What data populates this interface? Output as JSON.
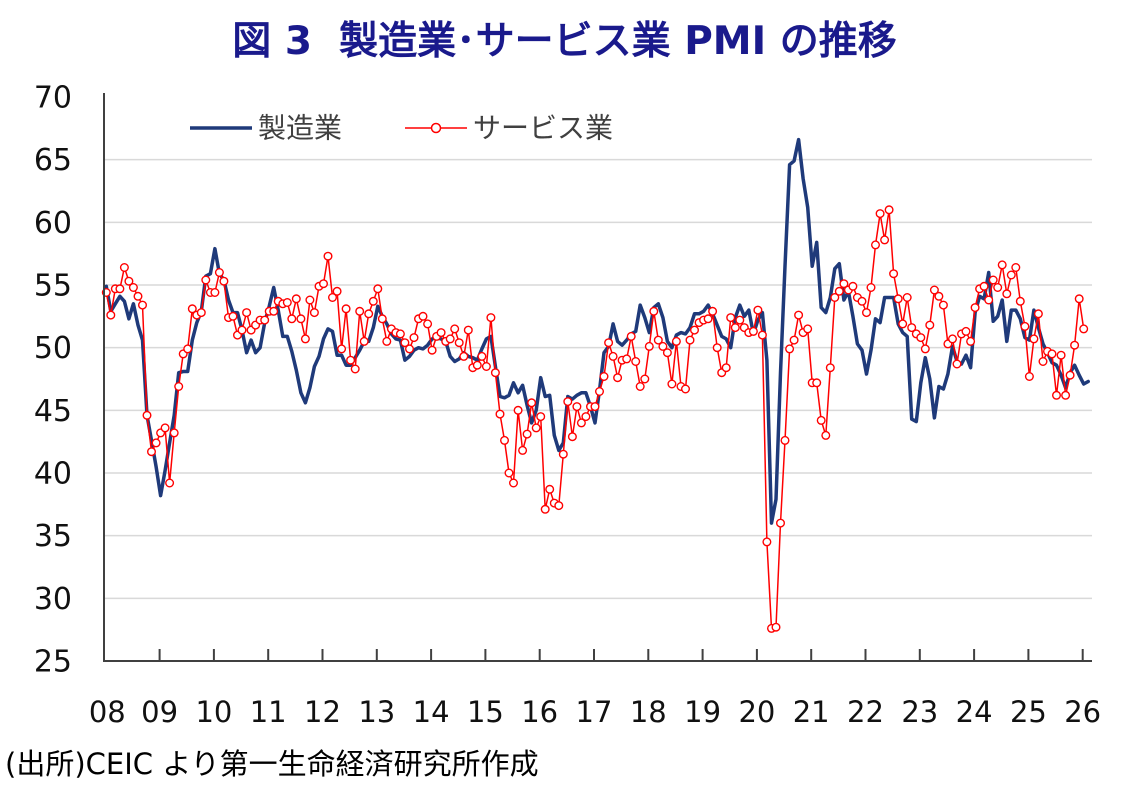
{
  "source": "(出所)CEIC より第一生命経済研究所作成",
  "colors": {
    "title": "#1a1a8c",
    "manufacturing": "#1f3a7a",
    "services": "#ff0000",
    "marker_fill": "#ffffff",
    "grid": "#d9d9d9",
    "axis": "#404040"
  },
  "chart_data": {
    "type": "line",
    "title": "図 3  製造業･サービス業 PMI の推移",
    "xlabel": "",
    "ylabel": "",
    "x_start_year": 2008,
    "x_start_month": 1,
    "points_per_year": 12,
    "x_tick_labels": [
      "08",
      "09",
      "10",
      "11",
      "12",
      "13",
      "14",
      "15",
      "16",
      "17",
      "18",
      "19",
      "20",
      "21",
      "22",
      "23",
      "24",
      "25",
      "26"
    ],
    "y_ticks": [
      70,
      65,
      60,
      55,
      50,
      45,
      40,
      35,
      30,
      25
    ],
    "ylim": [
      25,
      70
    ],
    "grid": true,
    "legend": {
      "position": "top-left"
    },
    "series": [
      {
        "name": "製造業",
        "marker": "none",
        "values": [
          54.9,
          52.9,
          53.5,
          54.1,
          53.7,
          52.3,
          53.5,
          51.8,
          50.6,
          44.6,
          42.6,
          40.5,
          38.2,
          40.2,
          42.4,
          44.6,
          48.0,
          48.1,
          48.1,
          50.6,
          52.0,
          52.9,
          55.7,
          55.9,
          57.9,
          55.9,
          55.4,
          53.8,
          52.8,
          52.8,
          51.4,
          49.6,
          50.6,
          49.6,
          50.0,
          52.0,
          53.3,
          54.8,
          53.0,
          50.9,
          50.9,
          49.7,
          48.2,
          46.4,
          45.6,
          46.8,
          48.5,
          49.3,
          50.7,
          51.5,
          51.3,
          49.4,
          49.4,
          48.6,
          48.6,
          49.2,
          49.8,
          50.5,
          50.5,
          51.6,
          53.3,
          52.5,
          51.9,
          51.1,
          50.7,
          50.6,
          49.0,
          49.3,
          49.8,
          50.0,
          49.9,
          50.2,
          50.7,
          50.8,
          50.7,
          50.5,
          49.3,
          48.9,
          49.1,
          49.6,
          49.3,
          49.2,
          49.0,
          49.9,
          50.7,
          50.9,
          48.5,
          46.1,
          46.0,
          46.2,
          47.2,
          46.4,
          47.0,
          45.4,
          44.0,
          45.0,
          47.6,
          46.1,
          46.2,
          43.0,
          41.8,
          42.4,
          46.1,
          45.9,
          46.2,
          46.4,
          46.4,
          45.3,
          44.0,
          46.6,
          49.6,
          50.1,
          51.9,
          50.5,
          50.2,
          50.6,
          51.1,
          51.3,
          53.4,
          52.4,
          51.2,
          53.2,
          53.5,
          52.4,
          50.5,
          50.0,
          51.0,
          51.2,
          51.1,
          51.6,
          52.7,
          52.7,
          52.9,
          53.4,
          52.7,
          51.8,
          50.9,
          50.7,
          50.0,
          52.4,
          53.4,
          52.5,
          53.0,
          51.1,
          52.2,
          52.8,
          49.0,
          36.0,
          37.9,
          48.0,
          56.5,
          64.6,
          64.9,
          66.6,
          63.5,
          61.2,
          56.5,
          58.4,
          53.2,
          52.8,
          54.0,
          56.3,
          56.7,
          53.8,
          54.5,
          52.5,
          50.3,
          49.8,
          47.9,
          49.8,
          52.3,
          52.0,
          54.0,
          54.0,
          54.0,
          51.9,
          51.2,
          50.9,
          44.3,
          44.1,
          47.2,
          49.2,
          47.5,
          44.4,
          46.9,
          46.7,
          47.9,
          50.1,
          48.9,
          48.7,
          49.4,
          48.4,
          52.8,
          54.1,
          53.9,
          56.0,
          52.1,
          52.5,
          53.8,
          50.5,
          53.0,
          53.0,
          52.3,
          50.8,
          50.6,
          53.0,
          51.6,
          50.3,
          49.6,
          48.8,
          48.6,
          47.8,
          46.8,
          48.0,
          48.6,
          47.8,
          47.1,
          47.3
        ]
      },
      {
        "name": "サービス業",
        "marker": "circle",
        "values": [
          54.4,
          52.6,
          54.7,
          54.7,
          56.4,
          55.3,
          54.8,
          54.1,
          53.4,
          44.6,
          41.7,
          42.4,
          43.2,
          43.6,
          39.2,
          43.2,
          46.9,
          49.5,
          49.9,
          53.1,
          52.6,
          52.8,
          55.4,
          54.4,
          54.4,
          56.0,
          55.3,
          52.4,
          52.5,
          51.0,
          51.4,
          52.8,
          51.4,
          51.8,
          52.2,
          52.2,
          52.9,
          52.9,
          53.7,
          53.5,
          53.6,
          52.3,
          53.9,
          52.3,
          50.7,
          53.8,
          52.8,
          54.9,
          55.1,
          57.3,
          54.0,
          54.5,
          49.9,
          53.1,
          49.0,
          48.3,
          52.9,
          50.5,
          52.7,
          53.7,
          54.7,
          52.3,
          50.5,
          51.5,
          51.2,
          51.1,
          50.4,
          49.9,
          50.8,
          52.3,
          52.5,
          51.9,
          49.8,
          50.9,
          51.2,
          50.5,
          50.7,
          51.5,
          50.4,
          49.3,
          51.4,
          48.4,
          48.6,
          49.3,
          48.5,
          52.4,
          48.0,
          44.7,
          42.6,
          40.0,
          39.2,
          45.0,
          41.8,
          43.1,
          45.6,
          43.6,
          44.5,
          37.1,
          38.7,
          37.6,
          37.4,
          41.5,
          45.7,
          42.9,
          45.3,
          44.0,
          44.5,
          45.3,
          45.3,
          46.5,
          47.7,
          50.4,
          49.3,
          47.6,
          49.0,
          49.1,
          50.9,
          48.9,
          46.9,
          47.5,
          50.1,
          52.9,
          50.6,
          50.1,
          49.6,
          47.1,
          50.5,
          46.9,
          46.7,
          50.6,
          51.4,
          52.0,
          52.2,
          52.3,
          52.9,
          50.0,
          48.0,
          48.4,
          52.4,
          51.6,
          52.2,
          51.6,
          51.2,
          51.3,
          53.0,
          51.0,
          34.5,
          27.6,
          27.7,
          36.0,
          42.6,
          49.9,
          50.6,
          52.6,
          51.2,
          51.5,
          47.2,
          47.2,
          44.2,
          43.0,
          48.4,
          54.0,
          54.5,
          55.1,
          54.6,
          54.9,
          54.0,
          53.7,
          52.8,
          54.8,
          58.2,
          60.7,
          58.6,
          61.0,
          55.9,
          53.9,
          51.9,
          54.0,
          51.6,
          51.1,
          50.8,
          49.9,
          51.8,
          54.6,
          54.1,
          53.4,
          50.3,
          50.7,
          48.7,
          51.1,
          51.3,
          50.5,
          53.2,
          54.7,
          54.9,
          53.8,
          55.4,
          54.8,
          56.6,
          54.3,
          55.8,
          56.4,
          53.7,
          51.7,
          47.7,
          50.7,
          52.7,
          48.9,
          49.7,
          49.5,
          46.2,
          49.4,
          46.2,
          47.8,
          50.2,
          53.9,
          51.5
        ]
      }
    ]
  }
}
